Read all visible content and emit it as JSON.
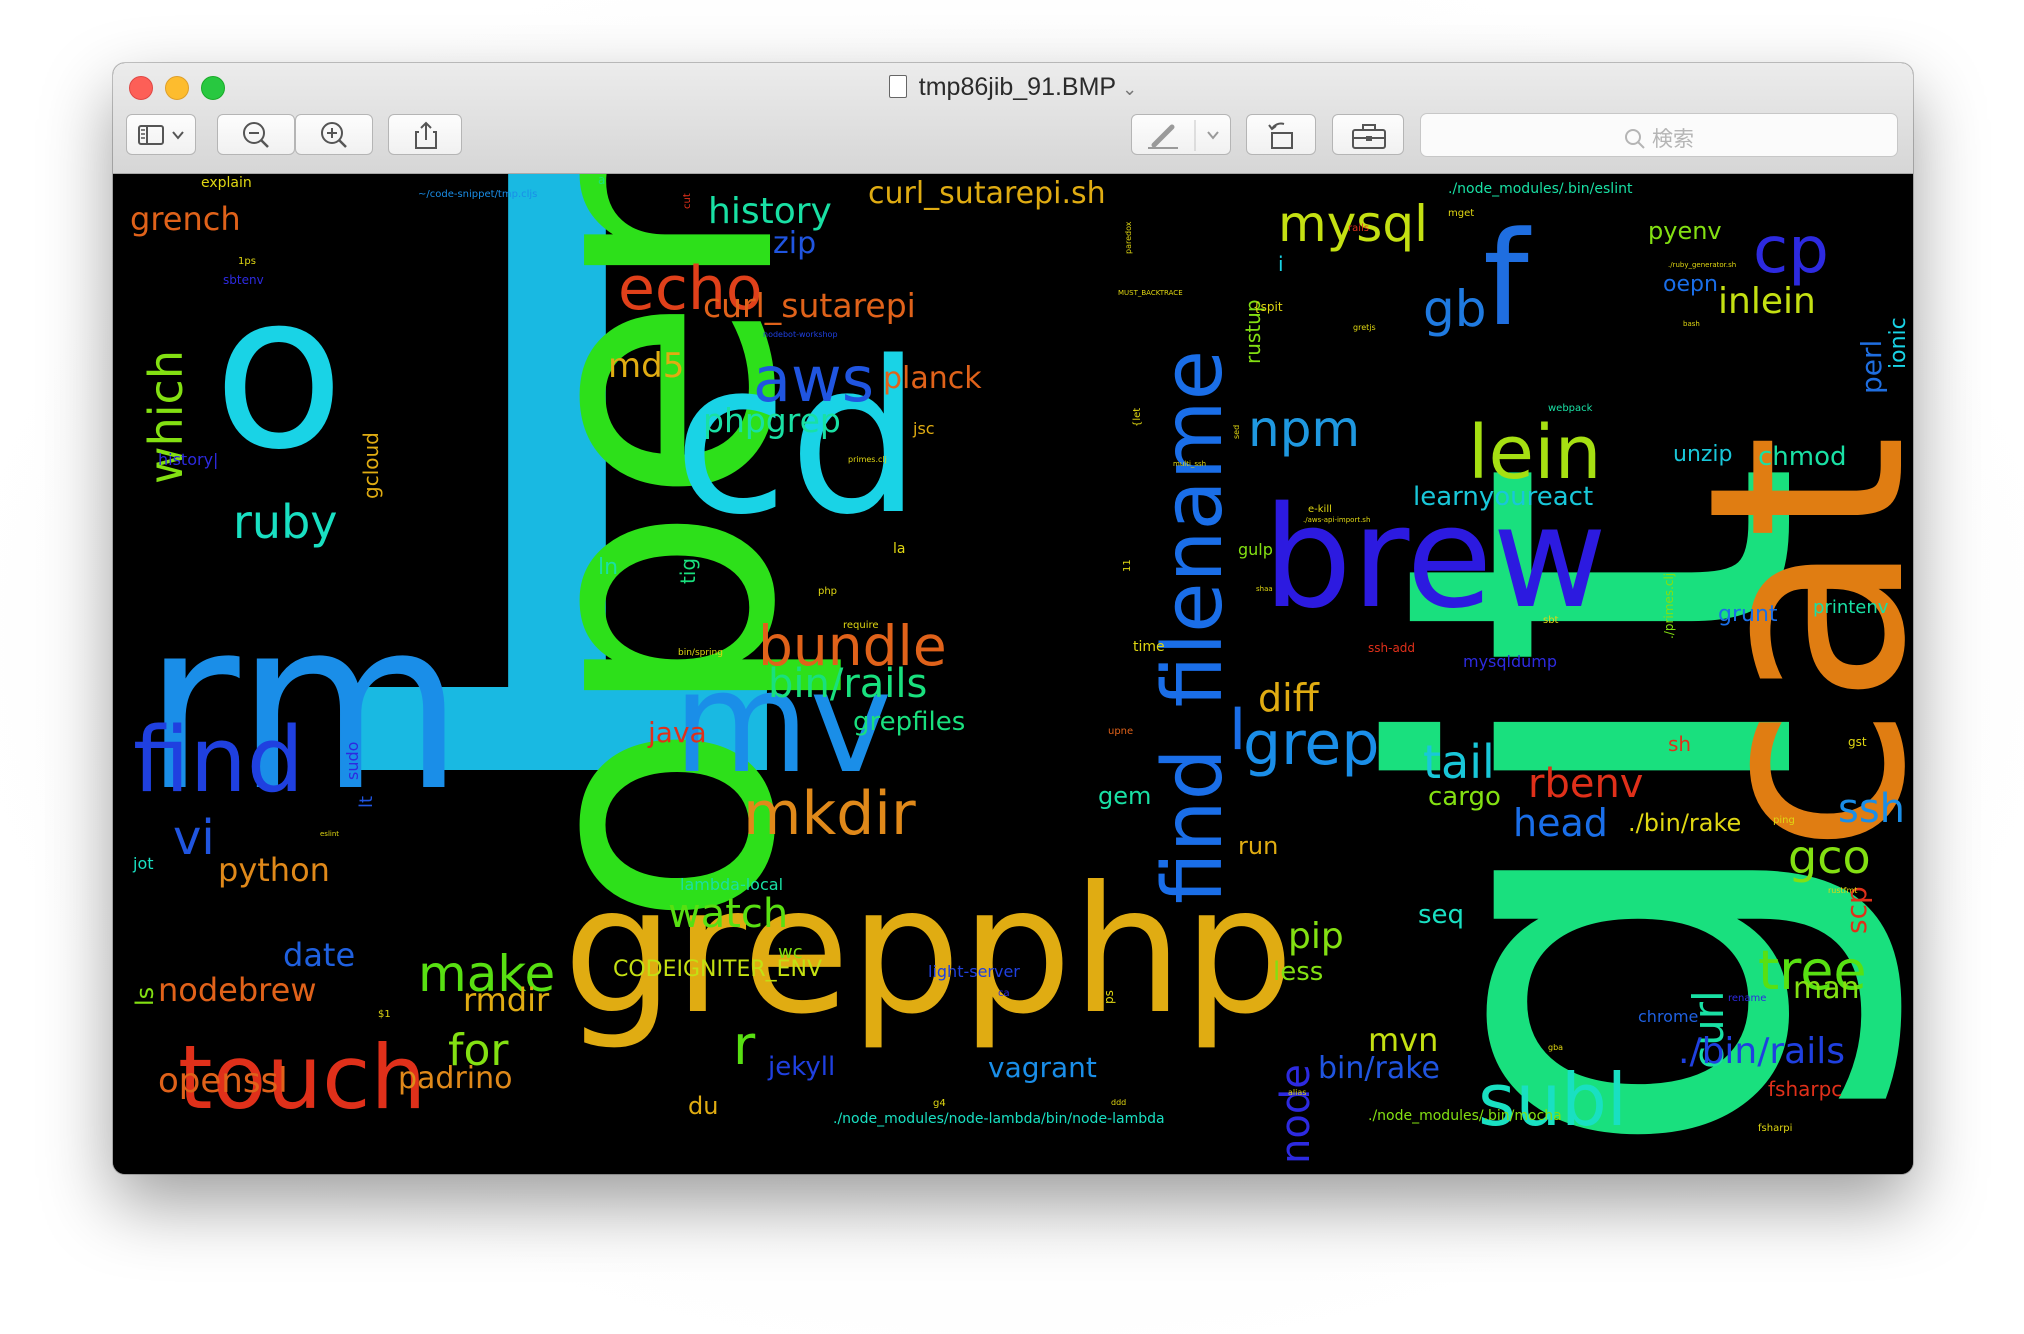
{
  "window": {
    "title": "tmp86jib_91.BMP"
  },
  "toolbar": {
    "search_placeholder": "検索"
  },
  "colors": {
    "cyan": "#19b9e2",
    "green": "#2de01a",
    "teal": "#19e07e"
  },
  "words": [
    "1",
    "open",
    "cd",
    "git",
    "cat",
    "rm",
    "o",
    "grepphp",
    "mv",
    "find",
    "brew",
    "f",
    "find_filename",
    "lein",
    "touch",
    "subl",
    "echo",
    "aws",
    "bundle",
    "mkdir",
    "make",
    "mysql",
    "cp",
    "gb",
    "npm",
    "grep",
    "tail",
    "gco",
    "tree",
    "curl",
    "history",
    "curl_sutarepi.sh",
    "curl_sutarepi",
    "which",
    "zip",
    "md5",
    "planck",
    "phpgrep",
    "ruby",
    "bin/rails",
    "grepfiles",
    "java",
    "diff",
    "vi",
    "python",
    "watch",
    "rbenv",
    "head",
    "./bin/rake",
    "ssh",
    "scp",
    "pip",
    "less",
    "node",
    "mvn",
    "bin/rake",
    "./bin/rails",
    "fsharpc",
    "date",
    "nodebrew",
    "rmdir",
    "for",
    "r",
    "jekyll",
    "vagrant",
    "du",
    "openssl",
    "padrino",
    "inlein",
    "pyenv",
    "oepn",
    "perl",
    "ionic",
    "unzip",
    "chmod",
    "learnyoureact",
    "grunt",
    "printenv",
    "mysqldump",
    "sh",
    "gst",
    "cargo",
    "gem",
    "run",
    "seq",
    "man",
    "chrome",
    "wc",
    "lambda-local",
    "CODEIGNITER_ENV",
    "light-server",
    "./node_modules/node-lambda/bin/node-lambda",
    "./node_modules/.bin/mocha",
    "./node_modules/.bin/eslint",
    "grench",
    "explain",
    "gcloud",
    "history|",
    "ln",
    "tig",
    "jsc",
    "la",
    "rustup",
    "i",
    "gulp",
    "time",
    "ssh-add",
    "upne",
    "jot",
    "ls",
    "sudo",
    "lt",
    "webpack",
    "ping",
    "ps",
    "~/code-snippet/tmp.cljs",
    "$1",
    "sbtenv",
    "1ps",
    "nodebot-workshop",
    "primes.clj",
    "multi_ssh",
    "e-kill",
    "bin/spring",
    "php",
    "require",
    "sbt",
    "eslint",
    "./primes.clj",
    "paredox",
    "mget",
    "rails",
    "{spit",
    "gretjs",
    "./ruby_generator.sh",
    "bash",
    "{let",
    "sed",
    "11",
    "fsharpi",
    "rename",
    "rustfmt",
    "./aws-api-import.sh",
    "alias",
    "g4",
    "ddd",
    "ca",
    "gba",
    "shaa",
    "a",
    "cut",
    "MUST_BACKTRACE"
  ]
}
